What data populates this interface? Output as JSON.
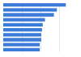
{
  "chart_data": {
    "type": "bar",
    "orientation": "horizontal",
    "categories": [
      null,
      null,
      null,
      null,
      null,
      null,
      null,
      null,
      null,
      null
    ],
    "values": [
      84,
      72,
      68,
      56,
      53,
      52,
      51,
      51,
      49,
      49
    ],
    "color": "#3b7bd9",
    "xlim": [
      0,
      100
    ],
    "xticks": [
      0,
      25,
      50,
      75,
      100
    ],
    "grid": true,
    "tick_labels": false
  }
}
